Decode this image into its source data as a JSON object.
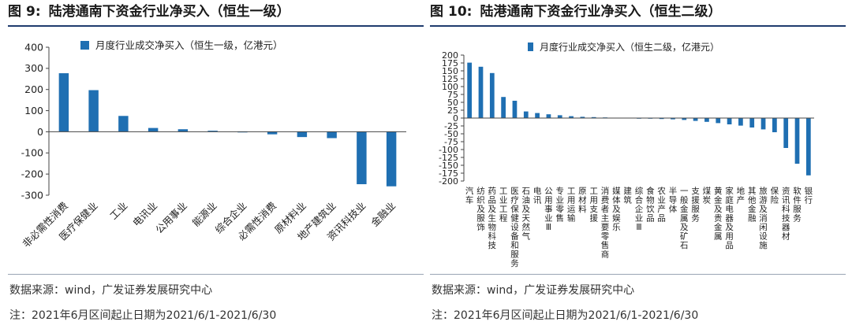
{
  "colors": {
    "bar": "#1f6fb2",
    "axis": "#444444",
    "title_rule": "#1f3b6e"
  },
  "left": {
    "title_label": "图",
    "title_num": "9:",
    "title_text": "陆港通南下资金行业净买入（恒生一级）",
    "source": "数据来源：wind，广发证券发展研究中心",
    "note": "注：2021年6月区间起止日期为2021/6/1-2021/6/30"
  },
  "right": {
    "title_label": "图",
    "title_num": "10:",
    "title_text": "陆港通南下资金行业净买入（恒生二级）",
    "source": "数据来源：wind，广发证券发展研究中心",
    "note": "注：2021年6月区间起止日期为2021/6/1-2021/6/30"
  },
  "chart_data": [
    {
      "type": "bar",
      "title": "图 9: 陆港通南下资金行业净买入（恒生一级）",
      "legend": "月度行业成交净买入（恒生一级，亿港元）",
      "legend_position": "top-left",
      "ylim": [
        -300,
        400
      ],
      "yticks": [
        -300,
        -200,
        -100,
        0,
        100,
        200,
        300,
        400
      ],
      "categories": [
        "非必需性消费",
        "医疗保健业",
        "工业",
        "电讯业",
        "公用事业",
        "能源业",
        "综合企业",
        "必需性消费",
        "原材料业",
        "地产建筑业",
        "资讯科技业",
        "金融业"
      ],
      "values": [
        277,
        197,
        75,
        18,
        12,
        5,
        0,
        -12,
        -25,
        -30,
        -248,
        -258
      ]
    },
    {
      "type": "bar",
      "title": "图 10: 陆港通南下资金行业净买入（恒生二级）",
      "legend": "月度行业成交净买入（恒生二级，亿港元）",
      "legend_position": "top-left",
      "ylim": [
        -200,
        200
      ],
      "yticks": [
        -200,
        -175,
        -150,
        -125,
        -100,
        -75,
        -50,
        -25,
        0,
        25,
        50,
        75,
        100,
        125,
        150,
        175,
        200
      ],
      "categories": [
        "汽车",
        "纺织及服饰",
        "药品及生物科技",
        "工业工程",
        "医疗保健设备和服务",
        "石油及天然气",
        "电讯",
        "公用事业Ⅲ",
        "专业零售",
        "工用运输",
        "原材料",
        "工用支援",
        "消费者主要零售商",
        "媒体及娱乐",
        "建筑",
        "综合企业Ⅲ",
        "食物饮品",
        "农业产品",
        "半导体",
        "一般金属及矿石",
        "支援服务",
        "煤炭",
        "黄金及贵金属",
        "家庭电器及用品",
        "地产",
        "其他金融",
        "旅游及消闲设施",
        "保险",
        "资讯科技器材",
        "软件服务",
        "银行"
      ],
      "values": [
        176,
        163,
        143,
        67,
        55,
        21,
        16,
        12,
        9,
        6,
        4,
        3,
        2,
        1,
        1,
        -1,
        -2,
        -3,
        -4,
        -6,
        -9,
        -12,
        -16,
        -20,
        -24,
        -30,
        -36,
        -45,
        -95,
        -145,
        -182
      ]
    }
  ]
}
